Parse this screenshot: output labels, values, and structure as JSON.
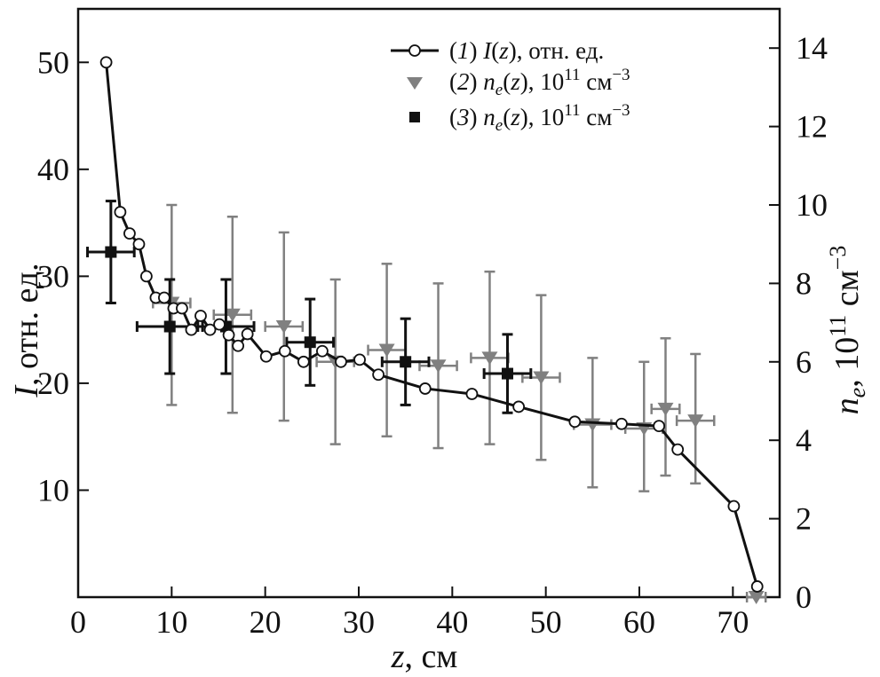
{
  "chart_data": {
    "type": "line",
    "xlabel": "z, см",
    "ylabel_left": "I, отн. ед.",
    "ylabel_right": "n_e, 10^11 см^-3",
    "xlim": [
      0,
      75
    ],
    "ylim_left": [
      0,
      55
    ],
    "ylim_right": [
      0,
      15
    ],
    "grid": false,
    "legend_position": "top-right",
    "x_ticks": [
      0,
      10,
      20,
      30,
      40,
      50,
      60,
      70
    ],
    "y_left_ticks": [
      10,
      20,
      30,
      40,
      50
    ],
    "y_right_ticks": [
      0,
      2,
      4,
      6,
      8,
      10,
      12,
      14
    ],
    "colors": {
      "series1": "#111111",
      "series2": "#808080",
      "series3": "#111111"
    },
    "legend": [
      {
        "num": "1",
        "func": "I",
        "arg": "z",
        "rest": ", отн. ед.",
        "marker": "open-circle"
      },
      {
        "num": "2",
        "func": "n",
        "sub": "e",
        "arg": "z",
        "rest": ", 10",
        "exp": "11",
        "unit": " см",
        "unit_exp": "−3",
        "marker": "gray-triangle"
      },
      {
        "num": "3",
        "func": "n",
        "sub": "e",
        "arg": "z",
        "rest": ", 10",
        "exp": "11",
        "unit": " см",
        "unit_exp": "−3",
        "marker": "black-square"
      }
    ],
    "series": [
      {
        "name": "(1) I(z), отн. ед.",
        "axis": "left",
        "marker": "open-circle",
        "x": [
          3,
          4.5,
          5.5,
          6.5,
          7.3,
          8.3,
          9.2,
          10.2,
          11.1,
          12.1,
          13.1,
          14.1,
          15.1,
          16.1,
          17.1,
          18.1,
          20.1,
          22.1,
          24.1,
          26.1,
          28.1,
          30.1,
          32.1,
          37.1,
          42.1,
          47.1,
          53.1,
          58.1,
          62.1,
          64.1,
          70.1,
          72.6
        ],
        "y": [
          50,
          36,
          34,
          33,
          30,
          28,
          28,
          27,
          27,
          25,
          26.3,
          25,
          25.5,
          24.5,
          23.5,
          24.6,
          22.5,
          23,
          22,
          23,
          22,
          22.2,
          20.8,
          19.5,
          19,
          17.8,
          16.4,
          16.2,
          16,
          13.8,
          8.5,
          1
        ]
      },
      {
        "name": "(2) n_e(z), 10^11 см^-3",
        "axis": "right",
        "marker": "gray-triangle",
        "x": [
          10,
          16.5,
          22,
          27.5,
          33,
          38.5,
          44,
          49.5,
          55,
          60.5,
          62.8,
          66,
          72.5
        ],
        "y": [
          7.5,
          7.2,
          6.9,
          6.0,
          6.3,
          5.9,
          6.1,
          5.6,
          4.4,
          4.3,
          4.8,
          4.5,
          0
        ],
        "y_err_low": [
          2.6,
          2.5,
          2.4,
          2.1,
          2.2,
          2.1,
          2.2,
          2.1,
          1.6,
          1.6,
          1.7,
          1.6,
          0
        ],
        "y_err_high": [
          2.5,
          2.5,
          2.4,
          2.1,
          2.2,
          2.1,
          2.2,
          2.1,
          1.7,
          1.7,
          1.8,
          1.7,
          0
        ],
        "x_err": [
          2,
          2,
          2,
          2,
          2,
          2,
          2,
          2,
          2,
          2,
          1.5,
          2,
          1
        ]
      },
      {
        "name": "(3) n_e(z), 10^11 см^-3",
        "axis": "right",
        "marker": "black-square",
        "x": [
          3.5,
          9.8,
          15.8,
          24.8,
          35,
          45.9
        ],
        "y": [
          8.8,
          6.9,
          6.9,
          6.5,
          6.0,
          5.7
        ],
        "y_err_low": [
          1.3,
          1.2,
          1.2,
          1.1,
          1.1,
          1.0
        ],
        "y_err_high": [
          1.3,
          1.2,
          1.2,
          1.1,
          1.1,
          1.0
        ],
        "x_err": [
          2.5,
          3.5,
          3,
          2.5,
          2.5,
          2.5
        ]
      }
    ]
  }
}
